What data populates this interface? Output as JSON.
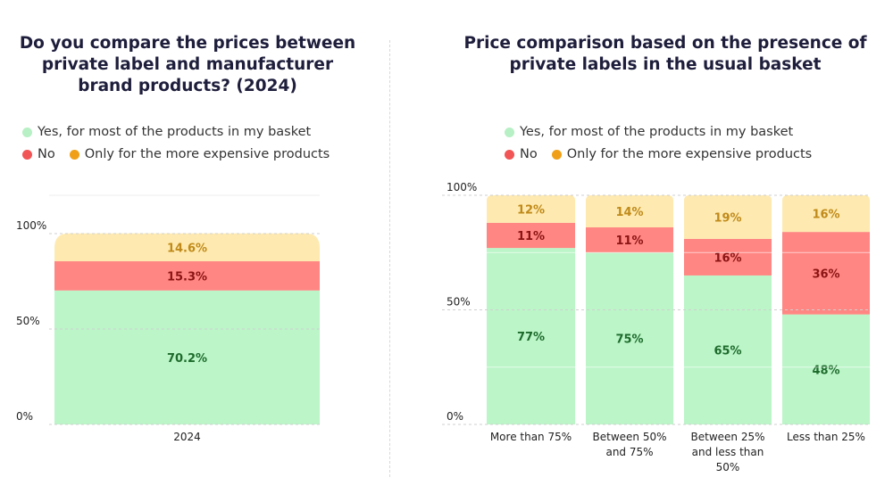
{
  "colors": {
    "yes": "#bbf5c8",
    "no": "#ff8682",
    "expensive": "#feeab0",
    "yes_text": "#1e6b2c",
    "no_text": "#8b1414",
    "expensive_text": "#c08a1a",
    "yes_dot": "#b7f0c4",
    "no_dot": "#f25555",
    "expensive_dot": "#f0a018"
  },
  "legend": {
    "yes": "Yes, for most of the products in my basket",
    "no": "No",
    "expensive": "Only for the more expensive products"
  },
  "chart_data": [
    {
      "type": "bar",
      "stacked": true,
      "title": "Do you compare the prices between private label and manufacturer brand products? (2024)",
      "title_lines": [
        "Do you compare the prices between",
        "private label and manufacturer",
        "brand products? (2024)"
      ],
      "categories": [
        "2024"
      ],
      "series": [
        {
          "name": "Yes, for most of the products in my basket",
          "values": [
            70.2
          ],
          "labels": [
            "70.2%"
          ]
        },
        {
          "name": "No",
          "values": [
            15.3
          ],
          "labels": [
            "15.3%"
          ]
        },
        {
          "name": "Only for the more expensive products",
          "values": [
            14.6
          ],
          "labels": [
            "14.6%"
          ]
        }
      ],
      "ylim": [
        0,
        100
      ],
      "yticks": [
        "0%",
        "50%",
        "100%"
      ],
      "grid": true,
      "legend_position": "top-left"
    },
    {
      "type": "bar",
      "stacked": true,
      "title": "Price comparison based on the presence of private labels in the usual basket",
      "title_lines": [
        "Price comparison based on the presence of",
        "private labels in the usual basket"
      ],
      "categories": [
        "More than 75%",
        "Between 50% and 75%",
        "Between 25% and less than 50%",
        "Less than 25%"
      ],
      "category_lines": [
        [
          "More than 75%"
        ],
        [
          "Between 50%",
          "and 75%"
        ],
        [
          "Between 25%",
          "and less than",
          "50%"
        ],
        [
          "Less than 25%"
        ]
      ],
      "series": [
        {
          "name": "Yes, for most of the products in my basket",
          "values": [
            77,
            75,
            65,
            48
          ],
          "labels": [
            "77%",
            "75%",
            "65%",
            "48%"
          ]
        },
        {
          "name": "No",
          "values": [
            11,
            11,
            16,
            36
          ],
          "labels": [
            "11%",
            "11%",
            "16%",
            "36%"
          ]
        },
        {
          "name": "Only for the more expensive products",
          "values": [
            12,
            14,
            19,
            16
          ],
          "labels": [
            "12%",
            "14%",
            "19%",
            "16%"
          ]
        }
      ],
      "ylim": [
        0,
        100
      ],
      "yticks": [
        "0%",
        "50%",
        "100%"
      ],
      "grid": true,
      "legend_position": "top"
    }
  ]
}
